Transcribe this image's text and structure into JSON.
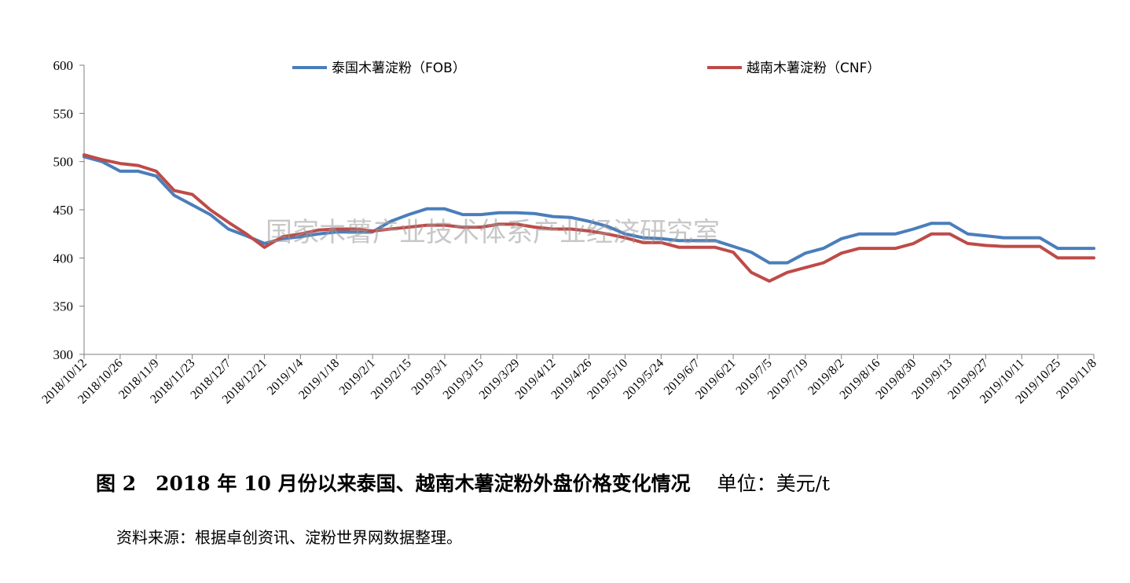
{
  "chart_data": {
    "type": "line",
    "ylim": [
      300,
      600
    ],
    "yticks": [
      300,
      350,
      400,
      450,
      500,
      550,
      600
    ],
    "xtick_labels": [
      "2018/10/12",
      "2018/10/26",
      "2018/11/9",
      "2018/11/23",
      "2018/12/7",
      "2018/12/21",
      "2019/1/4",
      "2019/1/18",
      "2019/2/1",
      "2019/2/15",
      "2019/3/1",
      "2019/3/15",
      "2019/3/29",
      "2019/4/12",
      "2019/4/26",
      "2019/5/10",
      "2019/5/24",
      "2019/6/7",
      "2019/6/21",
      "2019/7/5",
      "2019/7/19",
      "2019/8/2",
      "2019/8/16",
      "2019/8/30",
      "2019/9/13",
      "2019/9/27",
      "2019/10/11",
      "2019/10/25",
      "2019/11/8"
    ],
    "legend_position": "top",
    "grid": false,
    "series": [
      {
        "name": "泰国木薯淀粉（FOB）",
        "color": "#4a7ebb",
        "values": [
          505,
          500,
          490,
          490,
          485,
          465,
          455,
          445,
          430,
          423,
          415,
          420,
          422,
          425,
          427,
          427,
          427,
          438,
          445,
          451,
          451,
          445,
          445,
          447,
          447,
          446,
          443,
          442,
          438,
          433,
          425,
          421,
          420,
          418,
          418,
          418,
          412,
          406,
          395,
          395,
          405,
          410,
          420,
          425,
          425,
          425,
          430,
          436,
          436,
          425,
          423,
          421,
          421,
          421,
          410,
          410,
          410
        ]
      },
      {
        "name": "越南木薯淀粉（CNF）",
        "color": "#be4b48",
        "values": [
          507,
          502,
          498,
          496,
          490,
          470,
          466,
          450,
          437,
          425,
          411,
          422,
          425,
          429,
          430,
          430,
          428,
          430,
          432,
          434,
          434,
          432,
          432,
          435,
          435,
          432,
          430,
          430,
          428,
          425,
          421,
          416,
          416,
          411,
          411,
          411,
          406,
          385,
          376,
          385,
          390,
          395,
          405,
          410,
          410,
          410,
          415,
          425,
          425,
          415,
          413,
          412,
          412,
          412,
          400,
          400,
          400
        ]
      }
    ]
  },
  "watermark": "国家木薯产业技术体系产业经济研究室",
  "caption": {
    "title": "图 2　2018 年 10 月份以来泰国、越南木薯淀粉外盘价格变化情况",
    "unit": "单位：美元/t"
  },
  "source": "资料来源：根据卓创资讯、淀粉世界网数据整理。"
}
